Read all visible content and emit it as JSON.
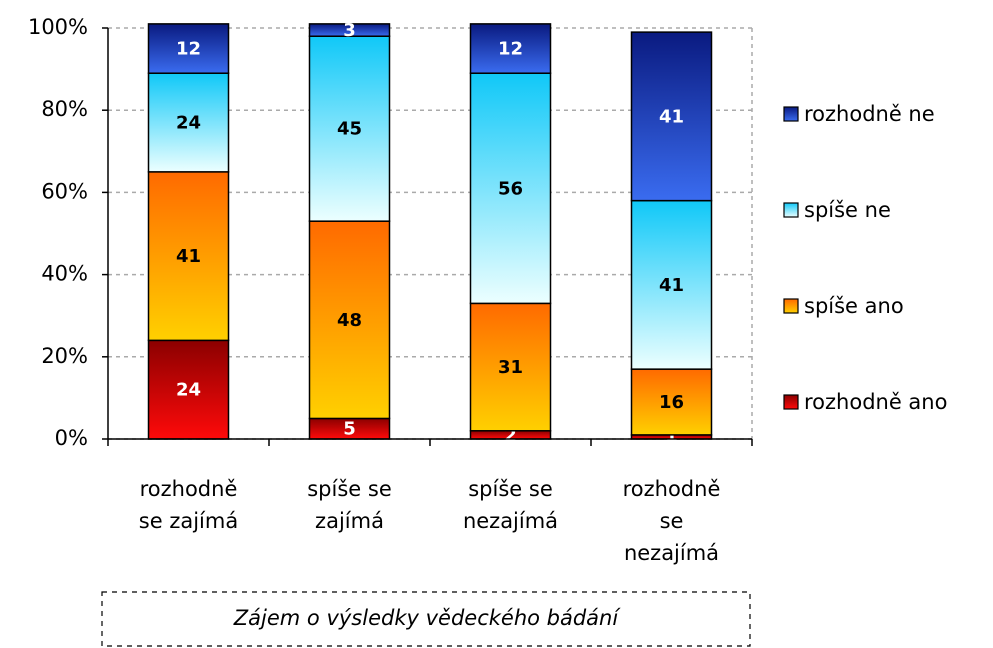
{
  "chart_data": {
    "type": "stacked_bar",
    "xlabel": "Zájem o výsledky vědeckého bádání",
    "categories": [
      "rozhodně se zajímá",
      "spíše se zajímá",
      "spíše se nezajímá",
      "rozhodně se nezajímá"
    ],
    "series": [
      {
        "name": "rozhodně ano",
        "color": [
          "#8b0000",
          "#ff0a0a"
        ],
        "label_color": "#ffffff",
        "values": [
          24,
          5,
          2,
          1
        ]
      },
      {
        "name": "spíše ano",
        "color": [
          "#ff6a00",
          "#ffd000"
        ],
        "label_color": "#000000",
        "values": [
          41,
          48,
          31,
          16
        ]
      },
      {
        "name": "spíše ne",
        "color": [
          "#10c8f8",
          "#ecffff"
        ],
        "label_color": "#000000",
        "values": [
          24,
          45,
          56,
          41
        ]
      },
      {
        "name": "rozhodně ne",
        "color": [
          "#0a1a80",
          "#3a6cf0"
        ],
        "label_color": "#ffffff",
        "values": [
          12,
          3,
          12,
          41
        ]
      }
    ],
    "ylim": [
      0,
      100
    ],
    "yticks": [
      {
        "value": 0,
        "label": "0%"
      },
      {
        "value": 20,
        "label": "20%"
      },
      {
        "value": 40,
        "label": "40%"
      },
      {
        "value": 60,
        "label": "60%"
      },
      {
        "value": 80,
        "label": "80%"
      },
      {
        "value": 100,
        "label": "100%"
      }
    ],
    "grid": true,
    "legend": "right"
  }
}
